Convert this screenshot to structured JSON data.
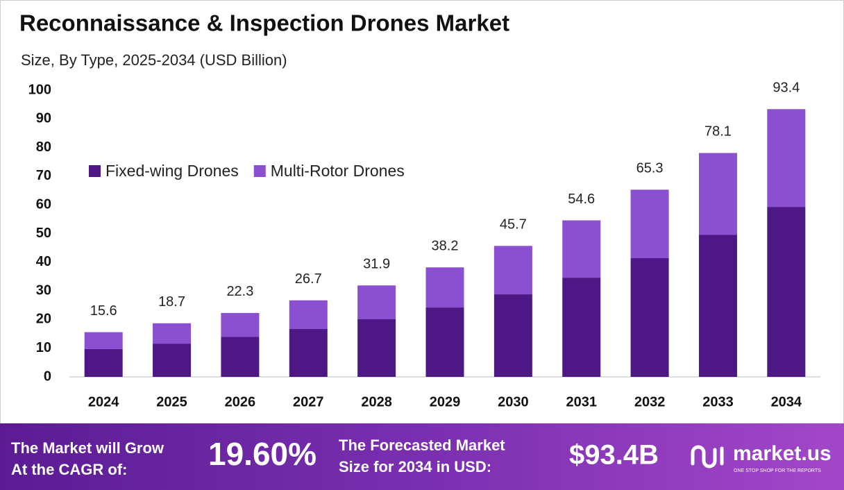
{
  "chart_data": {
    "type": "stacked_bar",
    "title": "Reconnaissance & Inspection Drones Market",
    "subtitle": "Size, By Type, 2025-2034 (USD Billion)",
    "categories": [
      "2024",
      "2025",
      "2026",
      "2027",
      "2028",
      "2029",
      "2030",
      "2031",
      "2032",
      "2033",
      "2034"
    ],
    "series": [
      {
        "name": "Fixed-wing Drones",
        "color": "#4e1786",
        "values": [
          9.7,
          11.6,
          14.0,
          16.7,
          20.1,
          24.2,
          28.8,
          34.6,
          41.4,
          49.6,
          59.3
        ]
      },
      {
        "name": "Multi-Rotor Drones",
        "color": "#8b4fd2",
        "values": [
          5.9,
          7.1,
          8.3,
          10.0,
          11.8,
          14.0,
          16.9,
          20.0,
          23.9,
          28.5,
          34.1
        ]
      }
    ],
    "totals": [
      15.6,
      18.7,
      22.3,
      26.7,
      31.9,
      38.2,
      45.7,
      54.6,
      65.3,
      78.1,
      93.4
    ],
    "ylim": [
      0,
      100
    ],
    "yticks": [
      0,
      10,
      20,
      30,
      40,
      50,
      60,
      70,
      80,
      90,
      100
    ],
    "grid": false,
    "legend": "upper-left"
  },
  "footer": {
    "cagr_label": [
      "The Market will Grow",
      "At the CAGR of:"
    ],
    "cagr_value": "19.60%",
    "forecast_label": [
      "The Forecasted Market",
      "Size for 2034 in USD:"
    ],
    "forecast_value": "$93.4B",
    "brand": "market.us",
    "tagline": "ONE STOP SHOP FOR THE REPORTS"
  }
}
